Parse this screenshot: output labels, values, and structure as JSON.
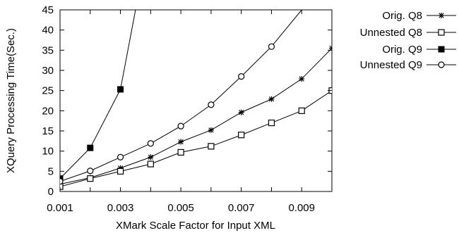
{
  "chart_data": {
    "type": "line",
    "title": "",
    "xlabel": "XMark Scale Factor for Input XML",
    "ylabel": "XQuery Processing Time(Sec.)",
    "xlim": [
      0.001,
      0.01
    ],
    "ylim": [
      0,
      45
    ],
    "xticks": [
      0.001,
      0.003,
      0.005,
      0.007,
      0.009
    ],
    "xtick_labels": [
      "0.001",
      "0.003",
      "0.005",
      "0.007",
      "0.009"
    ],
    "yticks": [
      0,
      5,
      10,
      15,
      20,
      25,
      30,
      35,
      40,
      45
    ],
    "ytick_labels": [
      "0",
      "5",
      "10",
      "15",
      "20",
      "25",
      "30",
      "35",
      "40",
      "45"
    ],
    "grid": false,
    "legend_position": "outside-right",
    "series": [
      {
        "name": "Orig. Q8",
        "marker": "asterisk",
        "x": [
          0.001,
          0.002,
          0.003,
          0.004,
          0.005,
          0.006,
          0.007,
          0.008,
          0.009,
          0.01
        ],
        "y": [
          1.8,
          3.4,
          5.8,
          8.5,
          12.3,
          15.2,
          19.6,
          22.9,
          27.9,
          35.5
        ]
      },
      {
        "name": "Unnested Q8",
        "marker": "open-square",
        "x": [
          0.001,
          0.002,
          0.003,
          0.004,
          0.005,
          0.006,
          0.007,
          0.008,
          0.009,
          0.01
        ],
        "y": [
          1.2,
          3.2,
          5.0,
          6.8,
          9.7,
          11.2,
          14.0,
          17.0,
          20.0,
          25.0
        ]
      },
      {
        "name": "Orig. Q9",
        "marker": "filled-square",
        "x": [
          0.001,
          0.002,
          0.003,
          0.0035
        ],
        "y": [
          3.2,
          10.8,
          25.3,
          45
        ]
      },
      {
        "name": "Unnested Q9",
        "marker": "open-circle",
        "x": [
          0.001,
          0.002,
          0.003,
          0.004,
          0.005,
          0.006,
          0.007,
          0.008,
          0.009
        ],
        "y": [
          2.5,
          5.1,
          8.5,
          11.9,
          16.2,
          21.5,
          28.5,
          35.9,
          45
        ]
      }
    ]
  }
}
